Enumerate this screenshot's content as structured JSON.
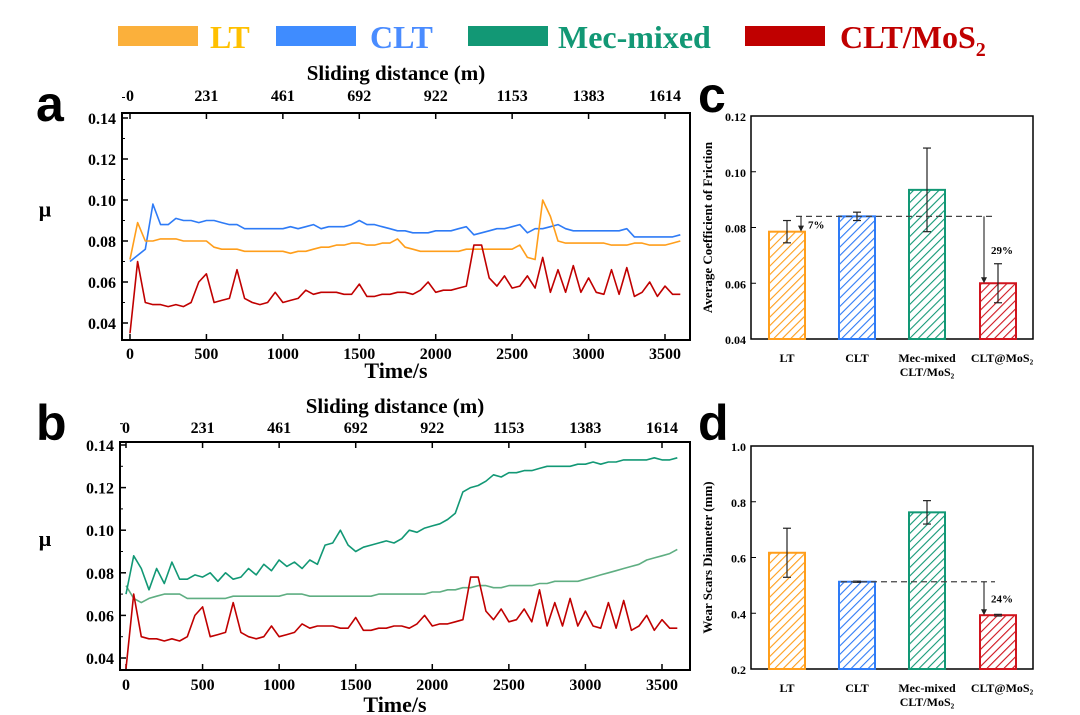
{
  "legend": [
    {
      "label": "LT",
      "swatch": "#FBB03B",
      "text_color": "#FFC000"
    },
    {
      "label": "CLT",
      "swatch": "#3F8CFF",
      "text_color": "#4A8CFF"
    },
    {
      "label": "Mec-mixed",
      "swatch": "#129875",
      "text_color": "#129875"
    },
    {
      "label": "CLT/MoS",
      "sub": "2",
      "swatch": "#C00000",
      "text_color": "#C00000"
    }
  ],
  "chart_data": [
    {
      "panel": "a",
      "type": "line",
      "xlabel": "Time/s",
      "ylabel": "μ",
      "top_axis_label": "Sliding distance (m)",
      "top_ticks": [
        "0",
        "231",
        "461",
        "692",
        "922",
        "1153",
        "1383",
        "1614"
      ],
      "xticks": [
        "0",
        "500",
        "1000",
        "1500",
        "2000",
        "2500",
        "3000",
        "3500"
      ],
      "yticks": [
        "0.04",
        "0.06",
        "0.08",
        "0.10",
        "0.12",
        "0.14"
      ],
      "xlim": [
        0,
        3600
      ],
      "ylim": [
        0.033,
        0.14
      ],
      "x": [
        0,
        50,
        100,
        150,
        200,
        250,
        300,
        350,
        400,
        450,
        500,
        550,
        600,
        650,
        700,
        750,
        800,
        850,
        900,
        950,
        1000,
        1050,
        1100,
        1150,
        1200,
        1250,
        1300,
        1350,
        1400,
        1450,
        1500,
        1550,
        1600,
        1650,
        1700,
        1750,
        1800,
        1850,
        1900,
        1950,
        2000,
        2050,
        2100,
        2150,
        2200,
        2250,
        2300,
        2350,
        2400,
        2450,
        2500,
        2550,
        2600,
        2650,
        2700,
        2750,
        2800,
        2850,
        2900,
        2950,
        3000,
        3050,
        3100,
        3150,
        3200,
        3250,
        3300,
        3350,
        3400,
        3450,
        3500,
        3550,
        3600
      ],
      "series": [
        {
          "name": "CLT",
          "color": "#2E7BF6",
          "values": [
            0.07,
            0.073,
            0.076,
            0.098,
            0.088,
            0.088,
            0.091,
            0.09,
            0.09,
            0.089,
            0.09,
            0.09,
            0.089,
            0.088,
            0.088,
            0.086,
            0.086,
            0.086,
            0.086,
            0.086,
            0.086,
            0.087,
            0.086,
            0.087,
            0.088,
            0.086,
            0.087,
            0.087,
            0.087,
            0.088,
            0.09,
            0.088,
            0.088,
            0.087,
            0.086,
            0.085,
            0.085,
            0.084,
            0.084,
            0.084,
            0.085,
            0.085,
            0.085,
            0.086,
            0.087,
            0.083,
            0.084,
            0.085,
            0.086,
            0.086,
            0.087,
            0.088,
            0.084,
            0.086,
            0.086,
            0.087,
            0.088,
            0.086,
            0.085,
            0.085,
            0.085,
            0.085,
            0.085,
            0.085,
            0.085,
            0.086,
            0.082,
            0.082,
            0.082,
            0.082,
            0.082,
            0.082,
            0.083
          ]
        },
        {
          "name": "LT",
          "color": "#FF9E1B",
          "values": [
            0.071,
            0.089,
            0.08,
            0.08,
            0.081,
            0.081,
            0.081,
            0.08,
            0.08,
            0.08,
            0.08,
            0.077,
            0.076,
            0.076,
            0.076,
            0.075,
            0.075,
            0.075,
            0.075,
            0.075,
            0.075,
            0.074,
            0.075,
            0.075,
            0.076,
            0.077,
            0.077,
            0.078,
            0.078,
            0.079,
            0.079,
            0.078,
            0.078,
            0.079,
            0.079,
            0.081,
            0.077,
            0.076,
            0.075,
            0.075,
            0.075,
            0.075,
            0.075,
            0.075,
            0.076,
            0.076,
            0.076,
            0.076,
            0.076,
            0.076,
            0.076,
            0.078,
            0.072,
            0.071,
            0.1,
            0.092,
            0.08,
            0.079,
            0.079,
            0.079,
            0.079,
            0.079,
            0.079,
            0.078,
            0.078,
            0.078,
            0.079,
            0.079,
            0.078,
            0.078,
            0.078,
            0.079,
            0.08
          ]
        },
        {
          "name": "CLT/MoS2",
          "color": "#C00000",
          "values": [
            0.035,
            0.07,
            0.05,
            0.049,
            0.049,
            0.048,
            0.049,
            0.048,
            0.05,
            0.06,
            0.064,
            0.05,
            0.051,
            0.052,
            0.066,
            0.052,
            0.05,
            0.049,
            0.05,
            0.055,
            0.05,
            0.051,
            0.052,
            0.056,
            0.054,
            0.055,
            0.055,
            0.055,
            0.054,
            0.054,
            0.059,
            0.053,
            0.053,
            0.054,
            0.054,
            0.055,
            0.055,
            0.054,
            0.056,
            0.06,
            0.055,
            0.056,
            0.056,
            0.057,
            0.058,
            0.078,
            0.078,
            0.062,
            0.058,
            0.063,
            0.057,
            0.058,
            0.063,
            0.057,
            0.072,
            0.055,
            0.066,
            0.055,
            0.068,
            0.055,
            0.062,
            0.055,
            0.054,
            0.066,
            0.054,
            0.067,
            0.053,
            0.055,
            0.06,
            0.053,
            0.058,
            0.054,
            0.054
          ]
        }
      ]
    },
    {
      "panel": "b",
      "type": "line",
      "xlabel": "Time/s",
      "ylabel": "μ",
      "top_axis_label": "Sliding distance (m)",
      "top_ticks": [
        "0",
        "231",
        "461",
        "692",
        "922",
        "1153",
        "1383",
        "1614"
      ],
      "xticks": [
        "0",
        "500",
        "1000",
        "1500",
        "2000",
        "2500",
        "3000",
        "3500"
      ],
      "yticks": [
        "0.04",
        "0.06",
        "0.08",
        "0.10",
        "0.12",
        "0.14"
      ],
      "xlim": [
        0,
        3600
      ],
      "ylim": [
        0.033,
        0.14
      ],
      "x": [
        0,
        50,
        100,
        150,
        200,
        250,
        300,
        350,
        400,
        450,
        500,
        550,
        600,
        650,
        700,
        750,
        800,
        850,
        900,
        950,
        1000,
        1050,
        1100,
        1150,
        1200,
        1250,
        1300,
        1350,
        1400,
        1450,
        1500,
        1550,
        1600,
        1650,
        1700,
        1750,
        1800,
        1850,
        1900,
        1950,
        2000,
        2050,
        2100,
        2150,
        2200,
        2250,
        2300,
        2350,
        2400,
        2450,
        2500,
        2550,
        2600,
        2650,
        2700,
        2750,
        2800,
        2850,
        2900,
        2950,
        3000,
        3050,
        3100,
        3150,
        3200,
        3250,
        3300,
        3350,
        3400,
        3450,
        3500,
        3550,
        3600
      ],
      "series": [
        {
          "color": "#5FAE82",
          "values": [
            0.074,
            0.068,
            0.066,
            0.068,
            0.069,
            0.07,
            0.07,
            0.07,
            0.068,
            0.068,
            0.068,
            0.068,
            0.068,
            0.068,
            0.069,
            0.069,
            0.069,
            0.069,
            0.069,
            0.069,
            0.069,
            0.07,
            0.07,
            0.07,
            0.069,
            0.069,
            0.069,
            0.069,
            0.069,
            0.069,
            0.069,
            0.069,
            0.069,
            0.07,
            0.07,
            0.07,
            0.07,
            0.07,
            0.07,
            0.07,
            0.071,
            0.071,
            0.072,
            0.072,
            0.073,
            0.073,
            0.074,
            0.074,
            0.073,
            0.073,
            0.074,
            0.074,
            0.074,
            0.074,
            0.075,
            0.075,
            0.076,
            0.076,
            0.076,
            0.076,
            0.077,
            0.078,
            0.079,
            0.08,
            0.081,
            0.082,
            0.083,
            0.084,
            0.086,
            0.087,
            0.088,
            0.089,
            0.091
          ]
        },
        {
          "name": "Mec-mixed",
          "color": "#129875",
          "values": [
            0.07,
            0.088,
            0.082,
            0.072,
            0.082,
            0.075,
            0.085,
            0.077,
            0.077,
            0.079,
            0.078,
            0.08,
            0.076,
            0.08,
            0.077,
            0.078,
            0.082,
            0.079,
            0.084,
            0.081,
            0.086,
            0.083,
            0.085,
            0.082,
            0.086,
            0.084,
            0.093,
            0.094,
            0.1,
            0.093,
            0.09,
            0.092,
            0.093,
            0.094,
            0.095,
            0.094,
            0.096,
            0.1,
            0.099,
            0.101,
            0.102,
            0.103,
            0.105,
            0.108,
            0.118,
            0.12,
            0.121,
            0.123,
            0.126,
            0.125,
            0.127,
            0.127,
            0.128,
            0.128,
            0.129,
            0.13,
            0.13,
            0.13,
            0.13,
            0.131,
            0.131,
            0.132,
            0.131,
            0.132,
            0.132,
            0.133,
            0.133,
            0.133,
            0.133,
            0.134,
            0.133,
            0.133,
            0.134
          ]
        },
        {
          "name": "CLT/MoS2",
          "color": "#C00000",
          "values": [
            0.035,
            0.07,
            0.05,
            0.049,
            0.049,
            0.048,
            0.049,
            0.048,
            0.05,
            0.06,
            0.064,
            0.05,
            0.051,
            0.052,
            0.066,
            0.052,
            0.05,
            0.049,
            0.05,
            0.055,
            0.05,
            0.051,
            0.052,
            0.056,
            0.054,
            0.055,
            0.055,
            0.055,
            0.054,
            0.054,
            0.059,
            0.053,
            0.053,
            0.054,
            0.054,
            0.055,
            0.055,
            0.054,
            0.056,
            0.06,
            0.055,
            0.056,
            0.056,
            0.057,
            0.058,
            0.078,
            0.078,
            0.062,
            0.058,
            0.063,
            0.057,
            0.058,
            0.063,
            0.057,
            0.072,
            0.055,
            0.066,
            0.055,
            0.068,
            0.055,
            0.062,
            0.055,
            0.054,
            0.066,
            0.054,
            0.067,
            0.053,
            0.055,
            0.06,
            0.053,
            0.058,
            0.054,
            0.054
          ]
        }
      ]
    },
    {
      "panel": "c",
      "type": "bar",
      "ylabel": "Average Coefficient of Friction",
      "categories": [
        [
          "LT"
        ],
        [
          "CLT"
        ],
        [
          "Mec-mixed",
          "CLT/MoS₂"
        ],
        [
          "CLT@MoS₂"
        ]
      ],
      "values": [
        0.0785,
        0.084,
        0.0935,
        0.06
      ],
      "errors": [
        0.004,
        0.0015,
        0.015,
        0.007
      ],
      "colors": [
        "#FF9E1B",
        "#2E7BF6",
        "#129875",
        "#D0141E"
      ],
      "ylim": [
        0.04,
        0.12
      ],
      "yticks": [
        "0.04",
        "0.06",
        "0.08",
        "0.10",
        "0.12"
      ],
      "reference": 0.084,
      "annotations": [
        {
          "text": "7%",
          "from": 0.084,
          "to": 0.0785
        },
        {
          "text": "29%",
          "from": 0.084,
          "to": 0.06
        }
      ]
    },
    {
      "panel": "d",
      "type": "bar",
      "ylabel": "Wear Scars Diameter (mm)",
      "categories": [
        [
          "LT"
        ],
        [
          "CLT"
        ],
        [
          "Mec-mixed",
          "CLT/MoS₂"
        ],
        [
          "CLT@MoS₂"
        ]
      ],
      "values": [
        0.617,
        0.513,
        0.762,
        0.393
      ],
      "errors": [
        0.088,
        0.002,
        0.042,
        0.003
      ],
      "colors": [
        "#FF9E1B",
        "#2E7BF6",
        "#129875",
        "#D0141E"
      ],
      "ylim": [
        0.2,
        1.0
      ],
      "yticks": [
        "0.2",
        "0.4",
        "0.6",
        "0.8",
        "1.0"
      ],
      "reference": 0.513,
      "annotations": [
        {
          "text": "24%",
          "from": 0.513,
          "to": 0.393
        }
      ]
    }
  ]
}
